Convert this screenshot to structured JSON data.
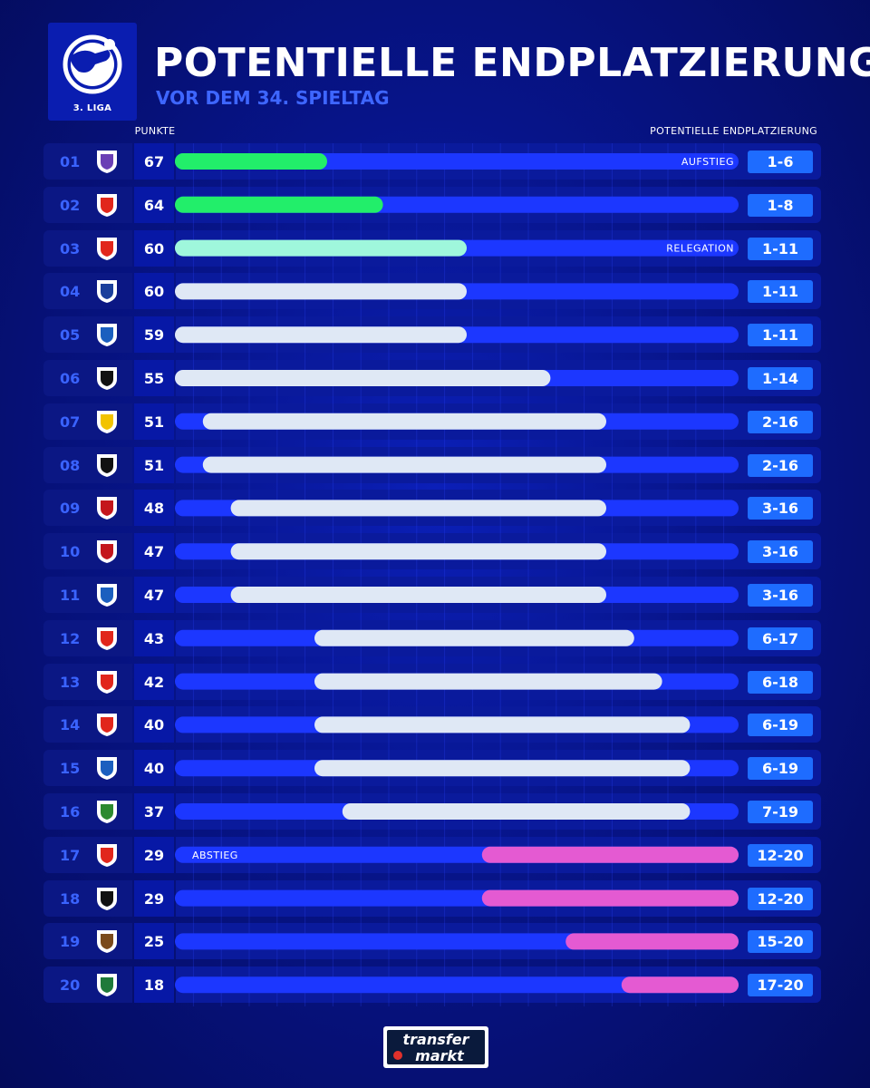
{
  "header": {
    "title": "POTENTIELLE ENDPLATZIERUNG",
    "subtitle": "VOR DEM 34. SPIELTAG",
    "league_label": "3. LIGA",
    "points_header": "PUNKTE",
    "range_header": "POTENTIELLE ENDPLATZIERUNG"
  },
  "zones": {
    "promotion": "AUFSTIEG",
    "relegation": "RELEGATION",
    "relegated": "ABSTIEG"
  },
  "colors": {
    "promotion": "#22ee6a",
    "relegation": "#9ff7dc",
    "neutral": "#dfe8f5",
    "relegated": "#e45ad2",
    "track": "#1c37ff",
    "accent": "#3a63ff"
  },
  "footer": {
    "logo_line1": "transfer",
    "logo_line2": "markt"
  },
  "chart_data": {
    "type": "bar",
    "title": "POTENTIELLE ENDPLATZIERUNG",
    "subtitle": "VOR DEM 34. SPIELTAG",
    "xlim": [
      1,
      20
    ],
    "rows": [
      {
        "rank": "01",
        "crest": "vfl-osnabrueck-crest-icon",
        "points": 67,
        "best": 1,
        "worst": 6,
        "range": "1-6",
        "zone": "promotion"
      },
      {
        "rank": "02",
        "crest": "rot-weiss-essen-crest-icon",
        "points": 64,
        "best": 1,
        "worst": 8,
        "range": "1-8",
        "zone": "promotion"
      },
      {
        "rank": "03",
        "crest": "energie-cottbus-crest-icon",
        "points": 60,
        "best": 1,
        "worst": 11,
        "range": "1-11",
        "zone": "relegation"
      },
      {
        "rank": "04",
        "crest": "msv-duisburg-crest-icon",
        "points": 60,
        "best": 1,
        "worst": 11,
        "range": "1-11",
        "zone": "neutral"
      },
      {
        "rank": "05",
        "crest": "hansa-rostock-crest-icon",
        "points": 59,
        "best": 1,
        "worst": 11,
        "range": "1-11",
        "zone": "neutral"
      },
      {
        "rank": "06",
        "crest": "sc-verl-crest-icon",
        "points": 55,
        "best": 1,
        "worst": 14,
        "range": "1-14",
        "zone": "neutral"
      },
      {
        "rank": "07",
        "crest": "alemannia-aachen-crest-icon",
        "points": 51,
        "best": 2,
        "worst": 16,
        "range": "2-16",
        "zone": "neutral"
      },
      {
        "rank": "08",
        "crest": "tsv-1860-crest-icon",
        "points": 51,
        "best": 2,
        "worst": 16,
        "range": "2-16",
        "zone": "neutral"
      },
      {
        "rank": "09",
        "crest": "wehen-wiesbaden-crest-icon",
        "points": 48,
        "best": 3,
        "worst": 16,
        "range": "3-16",
        "zone": "neutral"
      },
      {
        "rank": "10",
        "crest": "viktoria-koeln-crest-icon",
        "points": 47,
        "best": 3,
        "worst": 16,
        "range": "3-16",
        "zone": "neutral"
      },
      {
        "rank": "11",
        "crest": "waldhof-mannheim-crest-icon",
        "points": 47,
        "best": 3,
        "worst": 16,
        "range": "3-16",
        "zone": "neutral"
      },
      {
        "rank": "12",
        "crest": "jahn-regensburg-crest-icon",
        "points": 43,
        "best": 6,
        "worst": 17,
        "range": "6-17",
        "zone": "neutral"
      },
      {
        "rank": "13",
        "crest": "vfb-stuttgart-ii-crest-icon",
        "points": 42,
        "best": 6,
        "worst": 18,
        "range": "6-18",
        "zone": "neutral"
      },
      {
        "rank": "14",
        "crest": "fc-ingolstadt-crest-icon",
        "points": 40,
        "best": 6,
        "worst": 19,
        "range": "6-19",
        "zone": "neutral"
      },
      {
        "rank": "15",
        "crest": "hoffenheim-ii-crest-icon",
        "points": 40,
        "best": 6,
        "worst": 19,
        "range": "6-19",
        "zone": "neutral"
      },
      {
        "rank": "16",
        "crest": "saarbruecken-crest-icon",
        "points": 37,
        "best": 7,
        "worst": 19,
        "range": "7-19",
        "zone": "neutral"
      },
      {
        "rank": "17",
        "crest": "rot-weiss-essen-ii-crest-icon",
        "points": 29,
        "best": 12,
        "worst": 20,
        "range": "12-20",
        "zone": "relegated"
      },
      {
        "rank": "18",
        "crest": "ssv-ulm-crest-icon",
        "points": 29,
        "best": 12,
        "worst": 20,
        "range": "12-20",
        "zone": "relegated"
      },
      {
        "rank": "19",
        "crest": "erzgebirge-aue-crest-icon",
        "points": 25,
        "best": 15,
        "worst": 20,
        "range": "15-20",
        "zone": "relegated"
      },
      {
        "rank": "20",
        "crest": "schweinfurt-crest-icon",
        "points": 18,
        "best": 17,
        "worst": 20,
        "range": "17-20",
        "zone": "relegated"
      }
    ]
  }
}
